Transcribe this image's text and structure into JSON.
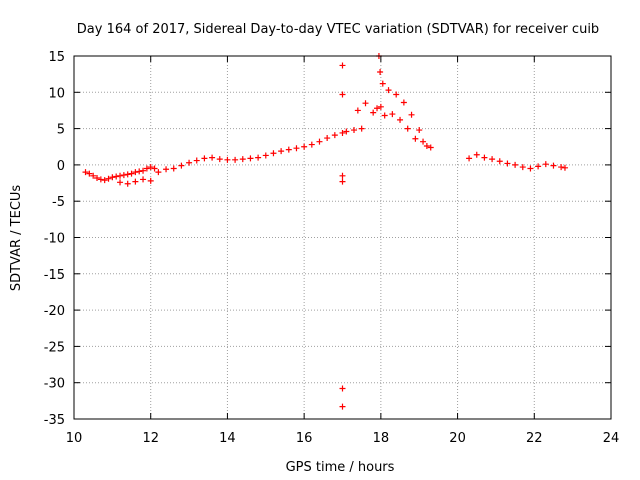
{
  "chart_data": {
    "type": "scatter",
    "title": "Day 164 of 2017, Sidereal Day-to-day VTEC variation (SDTVAR) for receiver cuib",
    "xlabel": "GPS time / hours",
    "ylabel": "SDTVAR / TECUs",
    "xlim": [
      10,
      24
    ],
    "ylim": [
      -35,
      15
    ],
    "xticks": [
      10,
      12,
      14,
      16,
      18,
      20,
      22,
      24
    ],
    "yticks": [
      15,
      10,
      5,
      0,
      -5,
      -10,
      -15,
      -20,
      -25,
      -30,
      -35
    ],
    "grid": true,
    "marker": "+",
    "colors": {
      "series": "#ff0000",
      "grid": "#a0a0a0",
      "axis": "#000000"
    },
    "series": [
      {
        "name": "SDTVAR",
        "x": [
          10.3,
          10.4,
          10.5,
          10.6,
          10.7,
          10.8,
          10.9,
          11.0,
          11.1,
          11.2,
          11.3,
          11.4,
          11.5,
          11.6,
          11.7,
          11.8,
          11.9,
          12.0,
          12.1,
          11.2,
          11.4,
          11.6,
          11.8,
          12.0,
          12.2,
          12.4,
          12.6,
          12.8,
          13.0,
          13.2,
          13.4,
          13.6,
          13.8,
          14.0,
          14.2,
          14.4,
          14.6,
          14.8,
          15.0,
          15.2,
          15.4,
          15.6,
          15.8,
          16.0,
          16.2,
          16.4,
          16.6,
          16.8,
          17.0,
          17.1,
          17.3,
          17.5,
          17.0,
          17.0,
          17.0,
          17.0,
          17.0,
          17.0,
          17.4,
          17.6,
          17.8,
          17.9,
          18.0,
          17.95,
          17.98,
          18.05,
          18.2,
          18.4,
          18.6,
          18.8,
          19.0,
          19.1,
          19.2,
          19.3,
          18.1,
          18.3,
          18.5,
          18.7,
          18.9,
          20.3,
          20.5,
          20.7,
          20.9,
          21.1,
          21.3,
          21.5,
          21.7,
          21.9,
          22.1,
          22.3,
          22.5,
          22.7,
          22.8
        ],
        "y": [
          -1.0,
          -1.2,
          -1.5,
          -1.8,
          -2.0,
          -2.1,
          -1.9,
          -1.7,
          -1.6,
          -1.5,
          -1.4,
          -1.3,
          -1.2,
          -1.0,
          -0.9,
          -0.8,
          -0.5,
          -0.3,
          -0.5,
          -2.4,
          -2.6,
          -2.3,
          -2.0,
          -2.2,
          -1.0,
          -0.6,
          -0.5,
          -0.1,
          0.3,
          0.6,
          0.9,
          1.0,
          0.8,
          0.7,
          0.7,
          0.8,
          0.9,
          1.0,
          1.3,
          1.6,
          1.9,
          2.1,
          2.3,
          2.5,
          2.8,
          3.2,
          3.7,
          4.1,
          4.4,
          4.6,
          4.8,
          5.0,
          13.7,
          9.7,
          -1.5,
          -2.3,
          -30.8,
          -33.3,
          7.5,
          8.5,
          7.2,
          7.8,
          8.0,
          15.0,
          12.8,
          11.2,
          10.3,
          9.7,
          8.6,
          6.9,
          4.8,
          3.2,
          2.6,
          2.4,
          6.8,
          7.0,
          6.2,
          5.0,
          3.6,
          0.9,
          1.4,
          1.0,
          0.8,
          0.5,
          0.2,
          0.0,
          -0.3,
          -0.5,
          -0.2,
          0.1,
          -0.1,
          -0.3,
          -0.4
        ]
      }
    ]
  }
}
